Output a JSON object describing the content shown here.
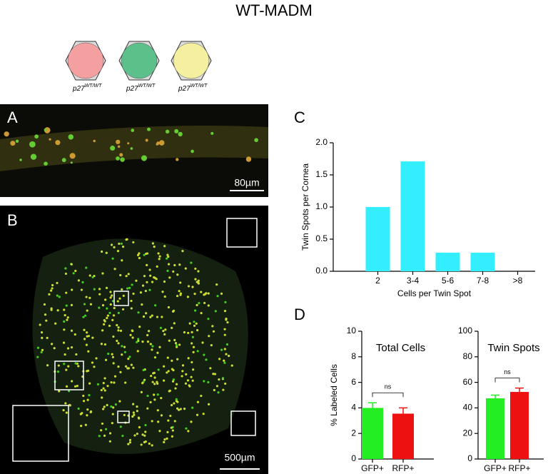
{
  "figure": {
    "title": "WT-MADM",
    "cells": [
      {
        "gene": "p27",
        "allele": "WT/WT",
        "color": "#f4a0a0"
      },
      {
        "gene": "p27",
        "allele": "WT/WT",
        "color": "#5cc08a"
      },
      {
        "gene": "p27",
        "allele": "WT/WT",
        "color": "#f4f0a0"
      }
    ],
    "panels": [
      "A",
      "B",
      "C",
      "D"
    ],
    "scale_bars": [
      "80µm",
      "500µm"
    ]
  },
  "chart_data": [
    {
      "type": "bar",
      "ylabel": "Twin Spots per Cornea",
      "xlabel": "Cells per Twin Spot",
      "categories": [
        "2",
        "3-4",
        "5-6",
        "7-8",
        ">8"
      ],
      "values": [
        1.0,
        1.71,
        0.29,
        0.29,
        0
      ],
      "color": "#33eeff",
      "ylim": [
        0,
        2
      ],
      "yticks": [
        {
          "value": 0,
          "label": "0.0"
        },
        0.5,
        {
          "value": 1,
          "label": "1.0"
        },
        1.5,
        {
          "value": 2,
          "label": "2.0"
        }
      ]
    },
    {
      "type": "bar",
      "title": "Total Cells",
      "ylabel": "% Labeled Cells",
      "categories": [
        "GFP+",
        "RFP+"
      ],
      "values": [
        4.0,
        3.55
      ],
      "errors": [
        0.4,
        0.45
      ],
      "colors": [
        "#22ee22",
        "#ee1111"
      ],
      "annotation": "ns",
      "ylim": [
        0,
        10
      ],
      "yticks": [
        0,
        2,
        4,
        6,
        8,
        10
      ]
    },
    {
      "type": "bar",
      "title": "Twin Spots",
      "categories": [
        "GFP+",
        "RFP+"
      ],
      "values": [
        47.5,
        52.5
      ],
      "errors": [
        2.5,
        3
      ],
      "colors": [
        "#22ee22",
        "#ee1111"
      ],
      "annotation": "ns",
      "ylim": [
        0,
        100
      ],
      "yticks": [
        0,
        20,
        40,
        60,
        80,
        100
      ]
    }
  ]
}
